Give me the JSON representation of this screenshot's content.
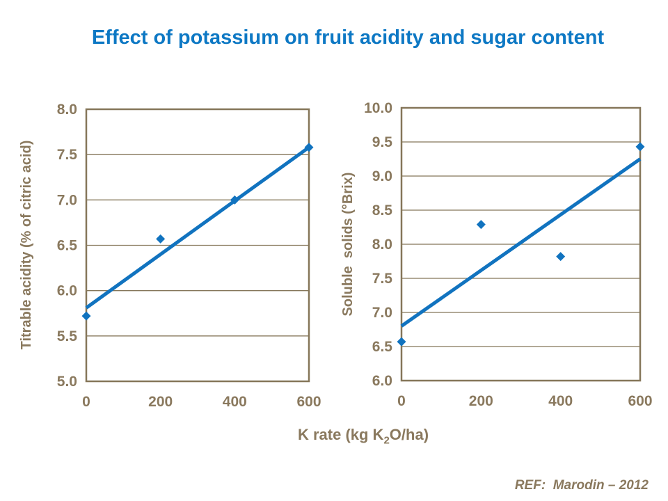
{
  "title": "Effect of potassium on fruit acidity and sugar content",
  "footer": "REF:  Marodin – 2012",
  "xlabel": {
    "pre": "K rate (kg K",
    "sub": "2",
    "post": "O/ha)"
  },
  "colors": {
    "title_blue": "#0d78c4",
    "series_blue": "#1173bf",
    "axis_line_brown": "#857659",
    "axis_text_brown": "#8a795e",
    "background": "#ffffff"
  },
  "chart_data": [
    {
      "type": "scatter",
      "name": "titrable-acidity",
      "ylabel": "Titrable acidity (% of citric acid)",
      "x": [
        0,
        200,
        400,
        600
      ],
      "y": [
        5.72,
        6.57,
        7.0,
        7.58
      ],
      "xticks": [
        0,
        200,
        400,
        600
      ],
      "xlim": [
        0,
        600
      ],
      "ylim": [
        5.0,
        8.0
      ],
      "ytick_step": 0.5,
      "grid": "horizontal",
      "legend": "none",
      "trendline": {
        "x": [
          0,
          600
        ],
        "y": [
          5.81,
          7.58
        ]
      }
    },
    {
      "type": "scatter",
      "name": "soluble-solids",
      "ylabel": "Soluble  solids (°Brix)",
      "x": [
        0,
        200,
        400,
        600
      ],
      "y": [
        6.57,
        8.29,
        7.82,
        9.43
      ],
      "xticks": [
        0,
        200,
        400,
        600
      ],
      "xlim": [
        0,
        600
      ],
      "ylim": [
        6.0,
        10.0
      ],
      "ytick_step": 0.5,
      "grid": "horizontal",
      "legend": "none",
      "trendline": {
        "x": [
          0,
          600
        ],
        "y": [
          6.8,
          9.25
        ]
      }
    }
  ]
}
